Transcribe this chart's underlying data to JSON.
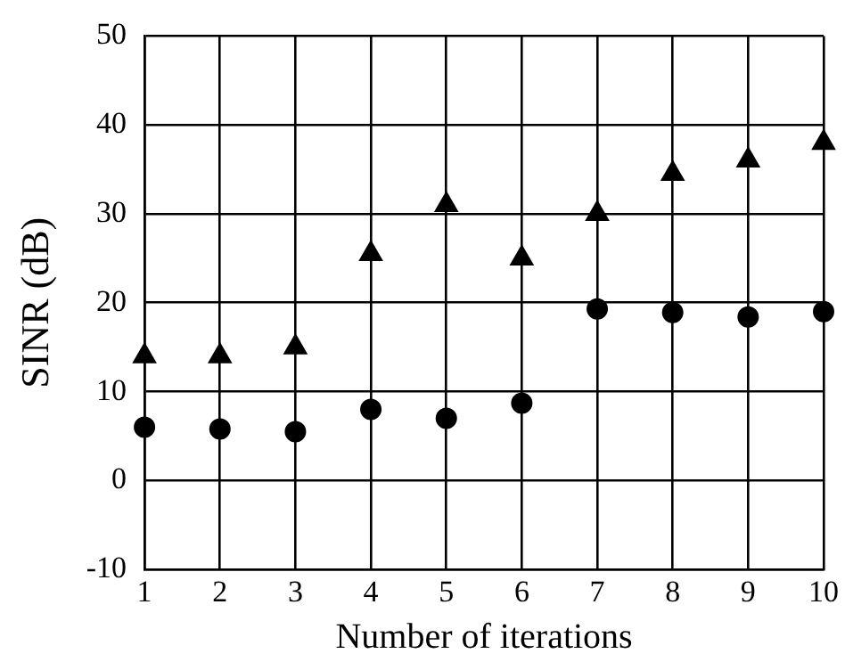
{
  "chart_data": {
    "type": "scatter",
    "xlabel": "Number of iterations",
    "ylabel": "SINR (dB)",
    "x": [
      1,
      2,
      3,
      4,
      5,
      6,
      7,
      8,
      9,
      10
    ],
    "series": [
      {
        "color": "#000000",
        "marker": "triangle",
        "values": [
          14,
          14,
          15,
          25.5,
          31,
          25,
          30,
          34.5,
          36,
          38
        ]
      },
      {
        "color": "#000000",
        "marker": "circle",
        "values": [
          6,
          5.8,
          5.5,
          8,
          7,
          8.7,
          19.3,
          18.9,
          18.4,
          19
        ]
      }
    ],
    "xlim": [
      1,
      10
    ],
    "xticks": [
      1,
      2,
      3,
      4,
      5,
      6,
      7,
      8,
      9,
      10
    ],
    "ylim": [
      -10,
      50
    ],
    "yticks": [
      -10,
      0,
      10,
      20,
      30,
      40,
      50
    ],
    "grid": true,
    "legend": false
  }
}
